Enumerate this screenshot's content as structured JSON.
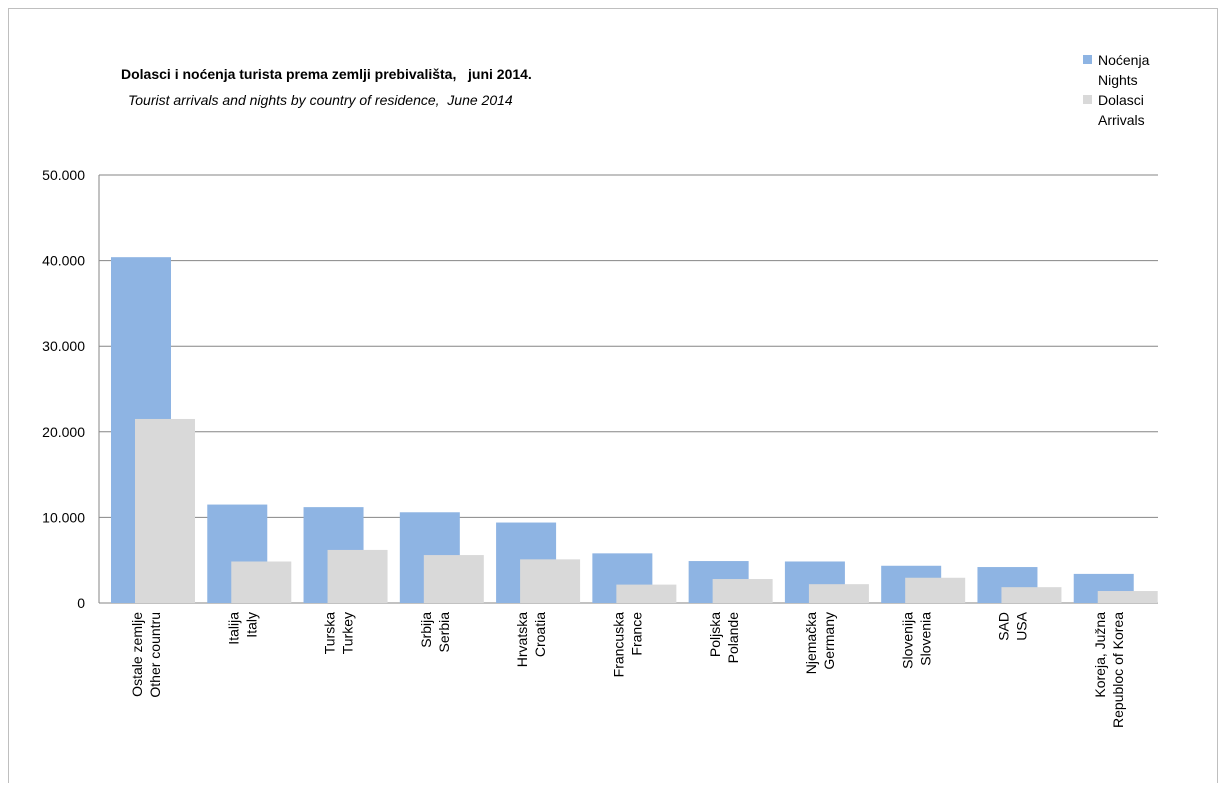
{
  "chart_data": {
    "type": "bar",
    "title": "Dolasci i noćenja turista prema zemlji prebivališta,   juni 2014.",
    "subtitle": "Tourist arrivals and nights by country of residence,  June 2014",
    "xlabel": "",
    "ylabel": "",
    "ylim": [
      0,
      50000
    ],
    "yticks": [
      "0",
      "10.000",
      "20.000",
      "30.000",
      "40.000",
      "50.000"
    ],
    "grid": true,
    "legend_position": "top-right",
    "categories": [
      [
        "Ostale zemlje",
        "Other countru"
      ],
      [
        "Italija",
        "Italy"
      ],
      [
        "Turska",
        "Turkey"
      ],
      [
        "Srbija",
        "Serbia"
      ],
      [
        "Hrvatska",
        "Croatia"
      ],
      [
        "Francuska",
        "France"
      ],
      [
        "Poljska",
        "Polande"
      ],
      [
        "Njemačka",
        "Germany"
      ],
      [
        "Slovenija",
        "Slovenia"
      ],
      [
        "SAD",
        "USA"
      ],
      [
        "Koreja, Južna",
        "Republoc of Korea"
      ]
    ],
    "series": [
      {
        "name": "Noćenja",
        "name2": "Nights",
        "color": "#8eb4e3",
        "values": [
          40400,
          11500,
          11200,
          10600,
          9400,
          5800,
          4900,
          4850,
          4350,
          4200,
          3400
        ]
      },
      {
        "name": "Dolasci",
        "name2": "Arrivals",
        "color": "#d9d9d9",
        "values": [
          21500,
          4850,
          6200,
          5600,
          5100,
          2150,
          2800,
          2200,
          2950,
          1850,
          1400
        ]
      }
    ]
  }
}
